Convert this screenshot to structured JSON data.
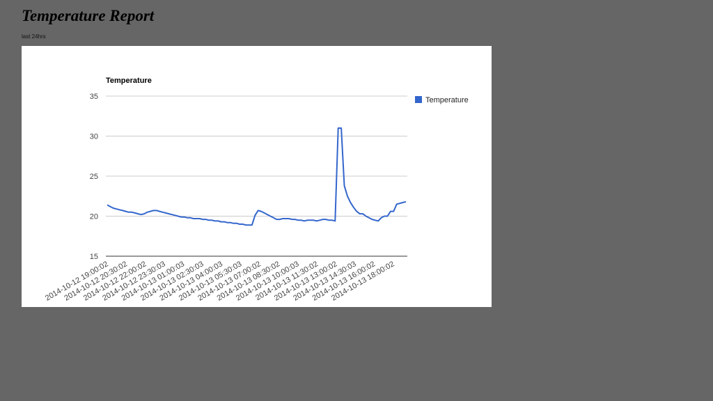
{
  "page": {
    "title": "Temperature Report",
    "subtitle": "last 24hrs"
  },
  "chart_data": {
    "type": "line",
    "title": "Temperature",
    "xlabel": "",
    "ylabel": "",
    "ylim": [
      15,
      35
    ],
    "yticks": [
      15,
      20,
      25,
      30,
      35
    ],
    "grid": true,
    "legend_position": "right",
    "series": [
      {
        "name": "Temperature",
        "color": "#3366cc",
        "values": [
          21.4,
          21.2,
          21.0,
          20.9,
          20.8,
          20.7,
          20.6,
          20.5,
          20.5,
          20.4,
          20.3,
          20.2,
          20.3,
          20.5,
          20.6,
          20.7,
          20.7,
          20.6,
          20.5,
          20.4,
          20.3,
          20.2,
          20.1,
          20.0,
          19.9,
          19.9,
          19.8,
          19.8,
          19.7,
          19.7,
          19.7,
          19.6,
          19.6,
          19.5,
          19.5,
          19.4,
          19.4,
          19.3,
          19.3,
          19.2,
          19.2,
          19.1,
          19.1,
          19.0,
          19.0,
          18.9,
          18.9,
          18.9,
          20.1,
          20.7,
          20.6,
          20.4,
          20.2,
          20.0,
          19.8,
          19.6,
          19.6,
          19.7,
          19.7,
          19.7,
          19.6,
          19.6,
          19.5,
          19.5,
          19.4,
          19.5,
          19.5,
          19.5,
          19.4,
          19.5,
          19.6,
          19.6,
          19.5,
          19.5,
          19.4,
          31.0,
          31.0,
          23.8,
          22.5,
          21.7,
          21.1,
          20.6,
          20.3,
          20.3,
          20.0,
          19.8,
          19.6,
          19.5,
          19.4,
          19.8,
          20.0,
          20.0,
          20.6,
          20.6,
          21.5,
          21.6,
          21.7,
          21.8
        ]
      }
    ],
    "x_tick_labels": [
      "2014-10-12 19:00:02",
      "2014-10-12 20:30:02",
      "2014-10-12 22:00:02",
      "2014-10-12 23:30:03",
      "2014-10-13 01:00:03",
      "2014-10-13 02:30:03",
      "2014-10-13 04:00:03",
      "2014-10-13 05:30:03",
      "2014-10-13 07:00:02",
      "2014-10-13 08:30:02",
      "2014-10-13 10:00:03",
      "2014-10-13 11:30:02",
      "2014-10-13 13:00:02",
      "2014-10-13 14:30:03",
      "2014-10-13 16:00:02",
      "2014-10-13 18:00:02"
    ]
  }
}
